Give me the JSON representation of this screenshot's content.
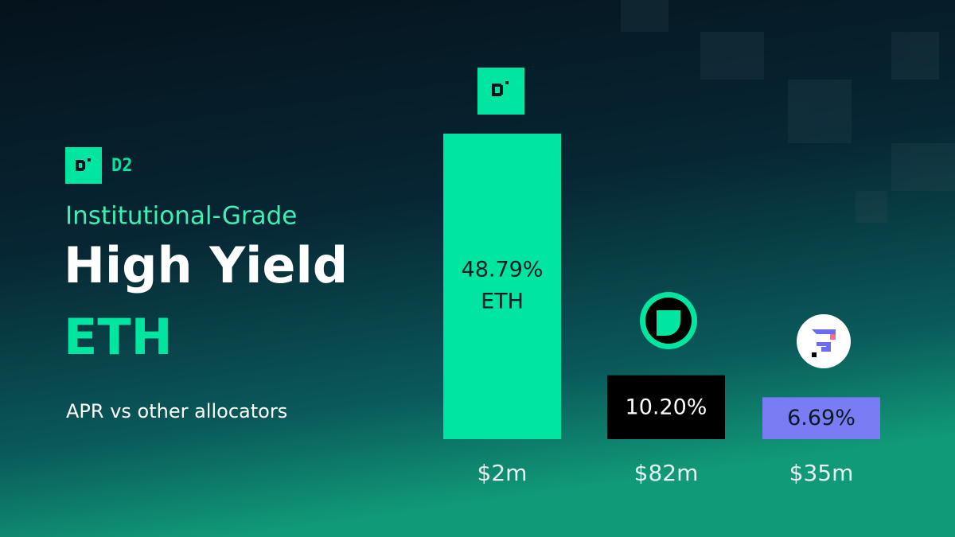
{
  "brand": "D2",
  "subtitle": "Institutional-Grade",
  "title": "High Yield",
  "title_highlight": "ETH",
  "caption": "APR vs other allocators",
  "chart_data": {
    "type": "bar",
    "categories": [
      "$2m",
      "$82m",
      "$35m"
    ],
    "values": [
      48.79,
      10.2,
      6.69
    ],
    "value_labels": [
      "48.79%",
      "10.20%",
      "6.69%"
    ],
    "first_bar_note": "ETH",
    "colors": [
      "#00e5a0",
      "#000000",
      "#7a7cf4"
    ],
    "label_colors": [
      "#0b1a22",
      "#ffffff",
      "#0b1a22"
    ]
  }
}
